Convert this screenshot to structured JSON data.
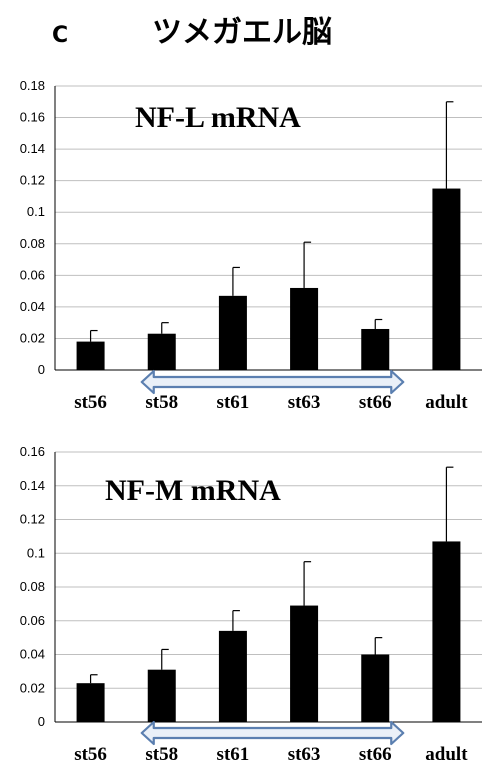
{
  "panel_letter": "C",
  "figure_title": "ツメガエル脳",
  "chart_data": [
    {
      "type": "bar",
      "title": "NF-L mRNA",
      "categories": [
        "st56",
        "st58",
        "st61",
        "st63",
        "st66",
        "adult"
      ],
      "values": [
        0.018,
        0.023,
        0.047,
        0.052,
        0.026,
        0.115
      ],
      "error": [
        0.007,
        0.007,
        0.018,
        0.029,
        0.006,
        0.055
      ],
      "ylim": [
        0,
        0.18
      ],
      "yticks": [
        "0",
        "0.02",
        "0.04",
        "0.06",
        "0.08",
        "0.1",
        "0.12",
        "0.14",
        "0.16",
        "0.18"
      ],
      "grid": true,
      "bracket_from": "st58",
      "bracket_to": "st66"
    },
    {
      "type": "bar",
      "title": "NF-M mRNA",
      "categories": [
        "st56",
        "st58",
        "st61",
        "st63",
        "st66",
        "adult"
      ],
      "values": [
        0.023,
        0.031,
        0.054,
        0.069,
        0.04,
        0.107
      ],
      "error": [
        0.005,
        0.012,
        0.012,
        0.026,
        0.01,
        0.044
      ],
      "ylim": [
        0,
        0.16
      ],
      "yticks": [
        "0",
        "0.02",
        "0.04",
        "0.06",
        "0.08",
        "0.1",
        "0.12",
        "0.14",
        "0.16"
      ],
      "grid": true,
      "bracket_from": "st58",
      "bracket_to": "st66"
    }
  ],
  "colors": {
    "bar": "#000000",
    "grid": "#bfbfbf",
    "bracket_stroke": "#5b7fb0",
    "bracket_fill": "#eaf0f8"
  }
}
